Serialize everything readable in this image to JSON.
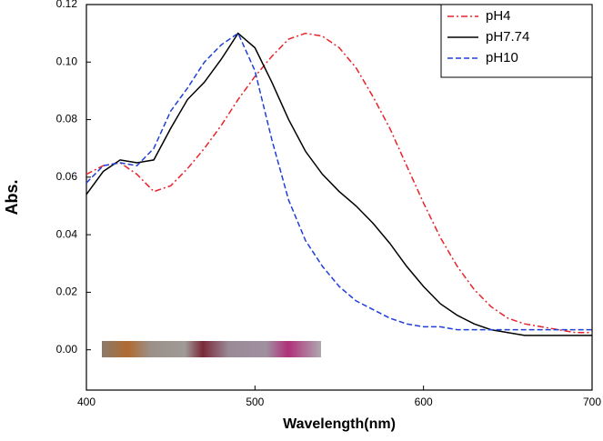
{
  "chart_data": {
    "type": "line",
    "xlabel": "Wavelength(nm)",
    "ylabel": "Abs.",
    "x": [
      400,
      410,
      420,
      430,
      440,
      450,
      460,
      470,
      480,
      490,
      500,
      510,
      520,
      530,
      540,
      550,
      560,
      570,
      580,
      590,
      600,
      610,
      620,
      630,
      640,
      650,
      660,
      670,
      680,
      690,
      700
    ],
    "series": [
      {
        "name": "pH4",
        "color": "#e8232a",
        "dash": "dashdot",
        "values": [
          0.061,
          0.064,
          0.065,
          0.061,
          0.055,
          0.057,
          0.063,
          0.07,
          0.078,
          0.087,
          0.095,
          0.102,
          0.108,
          0.11,
          0.109,
          0.105,
          0.098,
          0.088,
          0.077,
          0.064,
          0.051,
          0.039,
          0.029,
          0.021,
          0.015,
          0.011,
          0.009,
          0.008,
          0.007,
          0.006,
          0.006
        ]
      },
      {
        "name": "pH7.74",
        "color": "#000000",
        "dash": "solid",
        "values": [
          0.054,
          0.062,
          0.066,
          0.065,
          0.066,
          0.077,
          0.087,
          0.093,
          0.101,
          0.11,
          0.105,
          0.093,
          0.08,
          0.069,
          0.061,
          0.055,
          0.05,
          0.044,
          0.037,
          0.029,
          0.022,
          0.016,
          0.012,
          0.009,
          0.007,
          0.006,
          0.005,
          0.005,
          0.005,
          0.005,
          0.005
        ]
      },
      {
        "name": "pH10",
        "color": "#1f3fd6",
        "dash": "dashed",
        "values": [
          0.058,
          0.064,
          0.065,
          0.064,
          0.07,
          0.083,
          0.091,
          0.1,
          0.106,
          0.11,
          0.097,
          0.073,
          0.052,
          0.038,
          0.029,
          0.022,
          0.017,
          0.014,
          0.011,
          0.009,
          0.008,
          0.008,
          0.007,
          0.007,
          0.007,
          0.007,
          0.007,
          0.007,
          0.007,
          0.007,
          0.007
        ]
      }
    ],
    "xlim": [
      400,
      700
    ],
    "xticks": [
      400,
      500,
      600,
      700
    ],
    "ylim": [
      -0.014,
      0.12
    ],
    "yticks": [
      {
        "value": 0,
        "label": "0.00"
      },
      {
        "value": 0.02,
        "label": "0.02"
      },
      {
        "value": 0.04,
        "label": "0.04"
      },
      {
        "value": 0.06,
        "label": "0.06"
      },
      {
        "value": 0.08,
        "label": "0.08"
      },
      {
        "value": 0.1,
        "label": "0.10"
      },
      {
        "value": 0.12,
        "label": "0.12"
      }
    ],
    "legend": "top-right"
  }
}
